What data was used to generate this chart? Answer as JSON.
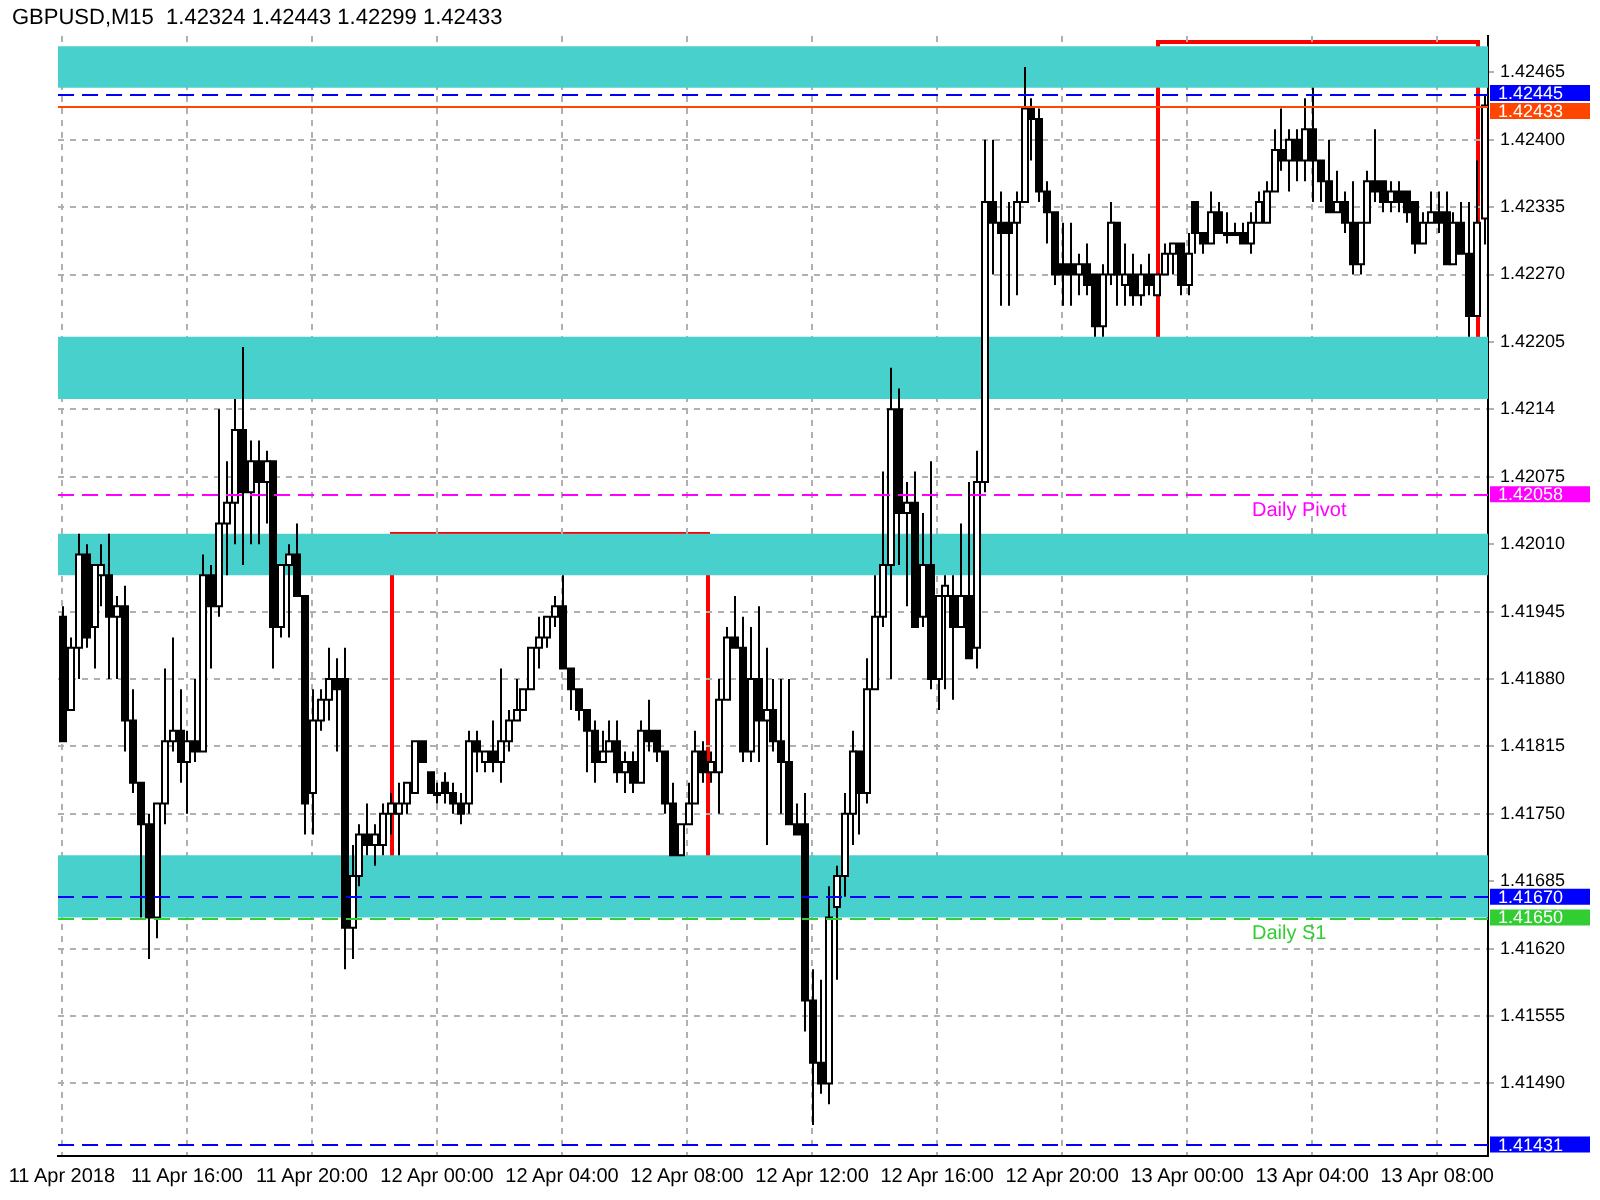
{
  "chart_data": {
    "type": "candlestick",
    "title": "GBPUSD,M15  1.42324 1.42443 1.42299 1.42433",
    "color": "#000000",
    "categories": [
      "11 Apr 2018",
      null,
      null,
      null,
      null,
      null,
      null,
      null,
      null,
      null,
      null,
      null,
      null,
      null,
      null,
      null,
      "11 Apr 16:00",
      null,
      null,
      null,
      null,
      null,
      null,
      null,
      null,
      null,
      null,
      null,
      null,
      null,
      null,
      null,
      "11 Apr 20:00",
      null,
      null,
      null,
      null,
      null,
      null,
      null,
      null,
      null,
      null,
      null,
      null,
      null,
      null,
      null,
      "12 Apr 00:00",
      null,
      null,
      null,
      null,
      null,
      null,
      null,
      null,
      null,
      null,
      null,
      null,
      null,
      null,
      null,
      "12 Apr 04:00",
      null,
      null,
      null,
      null,
      null,
      null,
      null,
      null,
      null,
      null,
      null,
      null,
      null,
      null,
      null,
      "12 Apr 08:00",
      null,
      null,
      null,
      null,
      null,
      null,
      null,
      null,
      null,
      null,
      null,
      null,
      null,
      null,
      null,
      "12 Apr 12:00",
      null,
      null,
      null,
      null,
      null,
      null,
      null,
      null,
      null,
      null,
      null,
      null,
      null,
      null,
      null,
      "12 Apr 16:00",
      null,
      null,
      null,
      null,
      null,
      null,
      null,
      null,
      null,
      null,
      null,
      null,
      null,
      null,
      null,
      "12 Apr 20:00",
      null,
      null,
      null,
      null,
      null,
      null,
      null,
      null,
      null,
      null,
      null,
      null,
      null,
      null,
      null,
      "13 Apr 00:00",
      null,
      null,
      null,
      null,
      null,
      null,
      null,
      null,
      null,
      null,
      null,
      null,
      null,
      null,
      null,
      "13 Apr 04:00",
      null,
      null,
      null,
      null,
      null,
      null,
      null,
      null,
      null,
      null,
      null,
      null,
      null,
      null,
      null,
      "13 Apr 08:00",
      null,
      null,
      null,
      null,
      null,
      null
    ],
    "ohlc": [
      [
        1.4194,
        1.4195,
        1.4182,
        1.4182
      ],
      [
        1.4185,
        1.4192,
        1.4185,
        1.4191
      ],
      [
        1.4191,
        1.4202,
        1.4188,
        1.42
      ],
      [
        1.42,
        1.4201,
        1.4191,
        1.4192
      ],
      [
        1.4193,
        1.4199,
        1.4189,
        1.4199
      ],
      [
        1.4198,
        1.4201,
        1.4195,
        1.4199
      ],
      [
        1.4198,
        1.4202,
        1.4188,
        1.4194
      ],
      [
        1.4194,
        1.4196,
        1.4188,
        1.4195
      ],
      [
        1.4195,
        1.4197,
        1.4181,
        1.4184
      ],
      [
        1.4184,
        1.4187,
        1.4177,
        1.4178
      ],
      [
        1.4178,
        1.4178,
        1.4165,
        1.4174
      ],
      [
        1.4174,
        1.4175,
        1.4161,
        1.4165
      ],
      [
        1.4165,
        1.4176,
        1.4163,
        1.4176
      ],
      [
        1.4176,
        1.4189,
        1.4174,
        1.4182
      ],
      [
        1.4182,
        1.4192,
        1.4181,
        1.4183
      ],
      [
        1.4183,
        1.4187,
        1.4178,
        1.418
      ],
      [
        1.418,
        1.4183,
        1.4175,
        1.4182
      ],
      [
        1.4182,
        1.4188,
        1.418,
        1.4181
      ],
      [
        1.4181,
        1.42,
        1.4181,
        1.4198
      ],
      [
        1.4198,
        1.4199,
        1.4189,
        1.4195
      ],
      [
        1.4195,
        1.4214,
        1.4194,
        1.4203
      ],
      [
        1.4203,
        1.4209,
        1.4198,
        1.4205
      ],
      [
        1.4205,
        1.4215,
        1.4201,
        1.4212
      ],
      [
        1.4212,
        1.422,
        1.4199,
        1.4206
      ],
      [
        1.4206,
        1.4211,
        1.4201,
        1.4209
      ],
      [
        1.4209,
        1.4211,
        1.4201,
        1.4207
      ],
      [
        1.4207,
        1.421,
        1.4203,
        1.4209
      ],
      [
        1.4209,
        1.4209,
        1.4189,
        1.4193
      ],
      [
        1.4193,
        1.4199,
        1.4192,
        1.4199
      ],
      [
        1.4199,
        1.4201,
        1.4192,
        1.42
      ],
      [
        1.42,
        1.4203,
        1.4196,
        1.4196
      ],
      [
        1.4196,
        1.4196,
        1.4173,
        1.4176
      ],
      [
        1.4177,
        1.4187,
        1.4173,
        1.4184
      ],
      [
        1.4184,
        1.4187,
        1.4183,
        1.4186
      ],
      [
        1.4186,
        1.4191,
        1.4184,
        1.4188
      ],
      [
        1.4188,
        1.419,
        1.4181,
        1.4187
      ],
      [
        1.4188,
        1.4191,
        1.416,
        1.4164
      ],
      [
        1.4164,
        1.4172,
        1.4161,
        1.4169
      ],
      [
        1.4169,
        1.4174,
        1.4168,
        1.4173
      ],
      [
        1.4173,
        1.4176,
        1.4171,
        1.4172
      ],
      [
        1.4172,
        1.4174,
        1.417,
        1.4173
      ],
      [
        1.4172,
        1.4176,
        1.4171,
        1.4175
      ],
      [
        1.4175,
        1.4177,
        1.4173,
        1.4176
      ],
      [
        1.4175,
        1.4178,
        1.4171,
        1.4176
      ],
      [
        1.4176,
        1.4178,
        1.4175,
        1.4178
      ],
      [
        1.4177,
        1.4182,
        1.4177,
        1.4182
      ],
      [
        1.4182,
        1.4182,
        1.418,
        1.418
      ],
      [
        1.4179,
        1.4179,
        1.4177,
        1.4177
      ],
      [
        1.4177,
        1.4178,
        1.4176,
        1.4177
      ],
      [
        1.4178,
        1.4179,
        1.4176,
        1.4177
      ],
      [
        1.4177,
        1.4178,
        1.4175,
        1.4176
      ],
      [
        1.4176,
        1.4177,
        1.4174,
        1.4175
      ],
      [
        1.4176,
        1.4183,
        1.4175,
        1.4182
      ],
      [
        1.4182,
        1.4183,
        1.4179,
        1.4181
      ],
      [
        1.418,
        1.4181,
        1.4179,
        1.4181
      ],
      [
        1.4181,
        1.4184,
        1.4179,
        1.418
      ],
      [
        1.418,
        1.4189,
        1.4178,
        1.4182
      ],
      [
        1.4182,
        1.4185,
        1.4181,
        1.4184
      ],
      [
        1.4184,
        1.4188,
        1.4184,
        1.4185
      ],
      [
        1.4185,
        1.4187,
        1.4185,
        1.4187
      ],
      [
        1.4187,
        1.4191,
        1.4187,
        1.4191
      ],
      [
        1.4191,
        1.4194,
        1.4189,
        1.4192
      ],
      [
        1.4192,
        1.4194,
        1.4191,
        1.4194
      ],
      [
        1.4194,
        1.4196,
        1.4193,
        1.4195
      ],
      [
        1.4195,
        1.4198,
        1.4189,
        1.4189
      ],
      [
        1.4189,
        1.4189,
        1.4185,
        1.4187
      ],
      [
        1.4187,
        1.4187,
        1.4184,
        1.4185
      ],
      [
        1.4185,
        1.4185,
        1.4179,
        1.4183
      ],
      [
        1.4183,
        1.4184,
        1.4178,
        1.418
      ],
      [
        1.418,
        1.4183,
        1.418,
        1.4181
      ],
      [
        1.4181,
        1.4184,
        1.4181,
        1.4182
      ],
      [
        1.4182,
        1.4184,
        1.4178,
        1.4179
      ],
      [
        1.4179,
        1.4181,
        1.4177,
        1.418
      ],
      [
        1.418,
        1.4181,
        1.4177,
        1.4178
      ],
      [
        1.4178,
        1.4184,
        1.4178,
        1.4183
      ],
      [
        1.4183,
        1.4186,
        1.4181,
        1.4182
      ],
      [
        1.4183,
        1.4183,
        1.418,
        1.4181
      ],
      [
        1.4181,
        1.4181,
        1.4175,
        1.4176
      ],
      [
        1.4176,
        1.4178,
        1.4171,
        1.4171
      ],
      [
        1.4171,
        1.4174,
        1.4171,
        1.4174
      ],
      [
        1.4174,
        1.4178,
        1.4174,
        1.4176
      ],
      [
        1.4176,
        1.4183,
        1.4176,
        1.4181
      ],
      [
        1.4181,
        1.4182,
        1.4178,
        1.4179
      ],
      [
        1.4179,
        1.4181,
        1.4178,
        1.418
      ],
      [
        1.4179,
        1.4188,
        1.4175,
        1.4186
      ],
      [
        1.4186,
        1.4193,
        1.4186,
        1.4192
      ],
      [
        1.4192,
        1.4196,
        1.4191,
        1.4191
      ],
      [
        1.4191,
        1.4194,
        1.418,
        1.4181
      ],
      [
        1.4181,
        1.4193,
        1.418,
        1.4188
      ],
      [
        1.4188,
        1.4195,
        1.418,
        1.4184
      ],
      [
        1.4184,
        1.4191,
        1.4172,
        1.4185
      ],
      [
        1.4185,
        1.4188,
        1.4181,
        1.4182
      ],
      [
        1.4182,
        1.4188,
        1.4175,
        1.418
      ],
      [
        1.418,
        1.4188,
        1.4174,
        1.4174
      ],
      [
        1.4174,
        1.4176,
        1.4173,
        1.4173
      ],
      [
        1.4174,
        1.4177,
        1.4154,
        1.4157
      ],
      [
        1.4157,
        1.416,
        1.4145,
        1.4151
      ],
      [
        1.4151,
        1.4159,
        1.4148,
        1.4149
      ],
      [
        1.4149,
        1.4168,
        1.4147,
        1.4165
      ],
      [
        1.4166,
        1.417,
        1.4159,
        1.4169
      ],
      [
        1.4169,
        1.4177,
        1.4167,
        1.4175
      ],
      [
        1.4175,
        1.4183,
        1.4172,
        1.4181
      ],
      [
        1.4181,
        1.4181,
        1.4173,
        1.4177
      ],
      [
        1.4177,
        1.419,
        1.4176,
        1.4187
      ],
      [
        1.4187,
        1.4198,
        1.4187,
        1.4194
      ],
      [
        1.4194,
        1.4208,
        1.4193,
        1.4199
      ],
      [
        1.4199,
        1.4218,
        1.4188,
        1.4214
      ],
      [
        1.4214,
        1.4216,
        1.4199,
        1.4204
      ],
      [
        1.4204,
        1.4207,
        1.4195,
        1.4205
      ],
      [
        1.4205,
        1.4208,
        1.4193,
        1.4193
      ],
      [
        1.4194,
        1.4204,
        1.4193,
        1.4199
      ],
      [
        1.4199,
        1.4209,
        1.4187,
        1.4188
      ],
      [
        1.4188,
        1.4196,
        1.4185,
        1.4196
      ],
      [
        1.4196,
        1.4198,
        1.4187,
        1.4197
      ],
      [
        1.4196,
        1.4198,
        1.4186,
        1.4193
      ],
      [
        1.4193,
        1.4203,
        1.4193,
        1.4196
      ],
      [
        1.4196,
        1.4207,
        1.419,
        1.419
      ],
      [
        1.4191,
        1.421,
        1.4189,
        1.4207
      ],
      [
        1.4207,
        1.424,
        1.4206,
        1.4234
      ],
      [
        1.4234,
        1.424,
        1.4227,
        1.4232
      ],
      [
        1.4232,
        1.4235,
        1.4224,
        1.4231
      ],
      [
        1.4232,
        1.4234,
        1.4224,
        1.4231
      ],
      [
        1.4232,
        1.4235,
        1.4225,
        1.4234
      ],
      [
        1.4234,
        1.4247,
        1.4234,
        1.4243
      ],
      [
        1.4243,
        1.4244,
        1.4238,
        1.4242
      ],
      [
        1.4242,
        1.4243,
        1.4234,
        1.4235
      ],
      [
        1.4235,
        1.4236,
        1.423,
        1.4233
      ],
      [
        1.4233,
        1.4233,
        1.4226,
        1.4227
      ],
      [
        1.4228,
        1.4232,
        1.4224,
        1.4227
      ],
      [
        1.4228,
        1.4232,
        1.4224,
        1.4227
      ],
      [
        1.4227,
        1.4229,
        1.4225,
        1.4228
      ],
      [
        1.4228,
        1.423,
        1.4225,
        1.4226
      ],
      [
        1.4227,
        1.4227,
        1.4221,
        1.4222
      ],
      [
        1.4222,
        1.4228,
        1.4221,
        1.4227
      ],
      [
        1.4227,
        1.4234,
        1.4226,
        1.4232
      ],
      [
        1.4232,
        1.4232,
        1.4224,
        1.4227
      ],
      [
        1.4226,
        1.423,
        1.4224,
        1.4227
      ],
      [
        1.4227,
        1.4229,
        1.4224,
        1.4225
      ],
      [
        1.4225,
        1.4228,
        1.4224,
        1.4227
      ],
      [
        1.4227,
        1.4229,
        1.4225,
        1.4226
      ],
      [
        1.4225,
        1.4227,
        1.4225,
        1.4227
      ],
      [
        1.4227,
        1.423,
        1.4227,
        1.4229
      ],
      [
        1.4229,
        1.423,
        1.4227,
        1.423
      ],
      [
        1.423,
        1.423,
        1.4225,
        1.4226
      ],
      [
        1.4226,
        1.4231,
        1.4225,
        1.4229
      ],
      [
        1.4234,
        1.4234,
        1.4229,
        1.4231
      ],
      [
        1.4231,
        1.4231,
        1.4229,
        1.423
      ],
      [
        1.423,
        1.4235,
        1.423,
        1.4233
      ],
      [
        1.4233,
        1.4234,
        1.4231,
        1.4231
      ],
      [
        1.4231,
        1.4233,
        1.423,
        1.4231
      ],
      [
        1.4231,
        1.4232,
        1.4231,
        1.4231
      ],
      [
        1.4231,
        1.4232,
        1.423,
        1.423
      ],
      [
        1.423,
        1.4233,
        1.4229,
        1.4232
      ],
      [
        1.4232,
        1.4235,
        1.4232,
        1.4234
      ],
      [
        1.4232,
        1.4236,
        1.4232,
        1.4235
      ],
      [
        1.4235,
        1.4241,
        1.4235,
        1.4239
      ],
      [
        1.4239,
        1.4243,
        1.4237,
        1.4238
      ],
      [
        1.4238,
        1.4241,
        1.4235,
        1.424
      ],
      [
        1.424,
        1.4241,
        1.4236,
        1.4238
      ],
      [
        1.4238,
        1.4244,
        1.4236,
        1.4241
      ],
      [
        1.4241,
        1.4245,
        1.4234,
        1.4238
      ],
      [
        1.4238,
        1.4238,
        1.4234,
        1.4236
      ],
      [
        1.4236,
        1.424,
        1.4233,
        1.4233
      ],
      [
        1.4233,
        1.4237,
        1.4233,
        1.4234
      ],
      [
        1.4234,
        1.4235,
        1.4231,
        1.4232
      ],
      [
        1.4232,
        1.4236,
        1.4227,
        1.4228
      ],
      [
        1.4228,
        1.4232,
        1.4227,
        1.4232
      ],
      [
        1.4232,
        1.4237,
        1.4232,
        1.4236
      ],
      [
        1.4236,
        1.4241,
        1.4234,
        1.4235
      ],
      [
        1.4236,
        1.4236,
        1.4233,
        1.4234
      ],
      [
        1.4234,
        1.4236,
        1.4233,
        1.4235
      ],
      [
        1.4235,
        1.4236,
        1.4233,
        1.4234
      ],
      [
        1.4235,
        1.4235,
        1.4232,
        1.4233
      ],
      [
        1.4234,
        1.4234,
        1.4229,
        1.423
      ],
      [
        1.423,
        1.4233,
        1.423,
        1.4232
      ],
      [
        1.4232,
        1.4235,
        1.4232,
        1.4233
      ],
      [
        1.4233,
        1.4235,
        1.4231,
        1.4232
      ],
      [
        1.4233,
        1.4235,
        1.4228,
        1.4228
      ],
      [
        1.4228,
        1.4233,
        1.4228,
        1.4232
      ],
      [
        1.4232,
        1.4234,
        1.4229,
        1.4229
      ],
      [
        1.4229,
        1.4234,
        1.4221,
        1.4223
      ],
      [
        1.4223,
        1.4238,
        1.4223,
        1.4232
      ],
      [
        1.42324,
        1.42443,
        1.42299,
        1.42433
      ]
    ],
    "colors": [
      "#000000",
      "#ffffff",
      "#ffffff",
      "#000000",
      "#ffffff",
      "#ffffff",
      "#000000",
      "#ffffff",
      "#000000",
      "#000000",
      "#000000",
      "#000000",
      "#ffffff",
      "#ffffff",
      "#ffffff",
      "#000000",
      "#ffffff",
      "#000000",
      "#ffffff",
      "#000000",
      "#ffffff",
      "#ffffff",
      "#ffffff",
      "#000000",
      "#ffffff",
      "#000000",
      "#ffffff",
      "#000000",
      "#ffffff",
      "#ffffff",
      "#000000",
      "#000000",
      "#ffffff",
      "#ffffff",
      "#ffffff",
      "#000000",
      "#000000",
      "#ffffff",
      "#ffffff",
      "#000000",
      "#ffffff",
      "#ffffff",
      "#ffffff",
      "#ffffff",
      "#ffffff",
      "#ffffff",
      "#000000",
      "#000000",
      "#ffffff",
      "#000000",
      "#000000",
      "#000000",
      "#ffffff",
      "#000000",
      "#ffffff",
      "#000000",
      "#ffffff",
      "#ffffff",
      "#ffffff",
      "#ffffff",
      "#ffffff",
      "#ffffff",
      "#ffffff",
      "#ffffff",
      "#000000",
      "#000000",
      "#000000",
      "#000000",
      "#000000",
      "#ffffff",
      "#ffffff",
      "#000000",
      "#ffffff",
      "#000000",
      "#ffffff",
      "#000000",
      "#000000",
      "#000000",
      "#000000",
      "#ffffff",
      "#ffffff",
      "#ffffff",
      "#000000",
      "#ffffff",
      "#ffffff",
      "#ffffff",
      "#000000",
      "#000000",
      "#ffffff",
      "#000000",
      "#ffffff",
      "#000000",
      "#000000",
      "#000000",
      "#000000",
      "#000000",
      "#000000",
      "#000000",
      "#ffffff",
      "#ffffff",
      "#ffffff",
      "#ffffff",
      "#000000",
      "#ffffff",
      "#ffffff",
      "#ffffff",
      "#ffffff",
      "#000000",
      "#ffffff",
      "#000000",
      "#ffffff",
      "#000000",
      "#ffffff",
      "#ffffff",
      "#000000",
      "#ffffff",
      "#000000",
      "#ffffff",
      "#ffffff",
      "#000000",
      "#000000",
      "#000000",
      "#ffffff",
      "#ffffff",
      "#000000",
      "#000000",
      "#000000",
      "#000000",
      "#000000",
      "#000000",
      "#ffffff",
      "#000000",
      "#000000",
      "#ffffff",
      "#ffffff",
      "#000000",
      "#ffffff",
      "#000000",
      "#ffffff",
      "#000000",
      "#ffffff",
      "#ffffff",
      "#ffffff",
      "#000000",
      "#ffffff",
      "#000000",
      "#000000",
      "#ffffff",
      "#000000",
      "#ffffff",
      "#ffffff",
      "#000000",
      "#ffffff",
      "#ffffff",
      "#ffffff",
      "#ffffff",
      "#000000",
      "#ffffff",
      "#000000",
      "#ffffff",
      "#000000",
      "#000000",
      "#000000",
      "#ffffff",
      "#000000",
      "#000000",
      "#ffffff",
      "#ffffff",
      "#000000",
      "#000000",
      "#ffffff",
      "#000000",
      "#000000",
      "#000000",
      "#ffffff",
      "#ffffff",
      "#000000",
      "#000000",
      "#ffffff",
      "#000000",
      "#000000",
      "#ffffff",
      "#ffffff"
    ],
    "ylim": [
      1.4142,
      1.425
    ],
    "yticks": [
      1.42465,
      {
        "value": 1.424,
        "label": "1.42400"
      },
      1.42335,
      {
        "value": 1.4227,
        "label": "1.42270"
      },
      1.42205,
      1.4214,
      1.42075,
      {
        "value": 1.4201,
        "label": "1.42010"
      },
      1.41945,
      {
        "value": 1.4188,
        "label": "1.41880"
      },
      1.41815,
      {
        "value": 1.4175,
        "label": "1.41750"
      },
      1.41685,
      {
        "value": 1.4162,
        "label": "1.41620"
      },
      1.41555,
      {
        "value": 1.4149,
        "label": "1.41490"
      }
    ],
    "grid": true,
    "bands": [
      {
        "axis": "y",
        "from": 1.4215,
        "to": 1.4219,
        "color": "#48d1cc"
      },
      {
        "axis": "y",
        "from": 1.4198,
        "to": 1.4202,
        "color": "#48d1cc"
      },
      {
        "axis": "y",
        "from": 1.4165,
        "to": 1.417,
        "color": "#48d1cc"
      },
      {
        "axis": "y",
        "from": 1.4167,
        "to": 1.4171,
        "color": "#48d1cc"
      },
      {
        "axis": "y",
        "from": 1.4245,
        "to": 1.4249,
        "color": "#48d1cc"
      },
      {
        "axis": "y",
        "from": 1.4217,
        "to": 1.4221,
        "color": "#48d1cc"
      }
    ],
    "ref_lines": [
      {
        "axis": "y",
        "value": 1.42445,
        "label": "1.42445",
        "color": "#0000ff",
        "line_style": "dashed"
      },
      {
        "axis": "y",
        "value": 1.42433,
        "label": "1.42433",
        "color": "#ff4500",
        "line_style": "solid"
      },
      {
        "axis": "y",
        "value": 1.42058,
        "label": "1.42058",
        "color": "#ff00ff",
        "line_style": "dashed"
      },
      {
        "axis": "y",
        "value": 1.4167,
        "label": "1.41670",
        "color": "#0000ff",
        "line_style": "dashed"
      },
      {
        "axis": "y",
        "value": 1.4165,
        "label": "1.41650",
        "color": "#32cd32",
        "line_style": "dashed"
      },
      {
        "axis": "y",
        "value": 1.41431,
        "label": "1.41431",
        "color": "#0000ff",
        "line_style": "dashed"
      }
    ],
    "annotations": [
      {
        "text": "Daily Pivot",
        "y": 1.42058
      },
      {
        "text": "Daily S1",
        "y": 1.4165
      }
    ]
  }
}
